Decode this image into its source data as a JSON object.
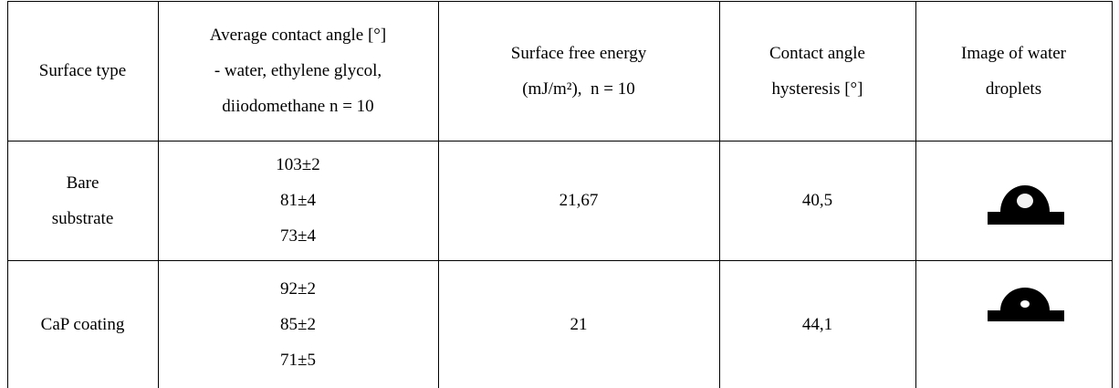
{
  "table": {
    "header": [
      [
        "Surface type"
      ],
      [
        "Average contact angle [°]",
        "- water, ethylene glycol,",
        "diiodomethane n = 10"
      ],
      [
        "Surface free energy",
        "(mJ/m²),  n = 10"
      ],
      [
        "Contact angle",
        "hysteresis [°]"
      ],
      [
        "Image of water",
        "droplets"
      ]
    ],
    "rows": [
      [
        [
          "Bare",
          "substrate"
        ],
        [
          "103±2",
          "81±4",
          "73±4"
        ],
        [
          "21,67"
        ],
        [
          "40,5"
        ]
      ],
      [
        [
          "CaP coating"
        ],
        [
          "92±2",
          "85±2",
          "71±5"
        ],
        [
          "21"
        ],
        [
          "44,1"
        ]
      ]
    ]
  }
}
